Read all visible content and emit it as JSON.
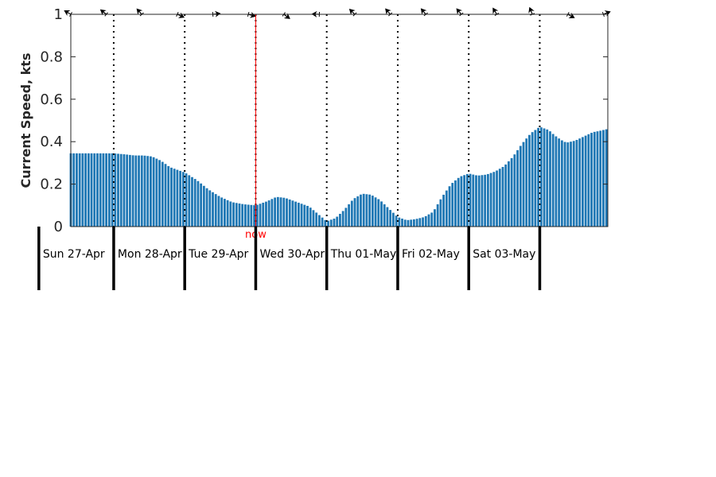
{
  "chart_data": {
    "type": "bar",
    "ylabel": "Current Speed, kts",
    "ylim": [
      0,
      1
    ],
    "yticks": [
      "0",
      "0.2",
      "0.4",
      "0.6",
      "0.8",
      "1"
    ],
    "grid": false,
    "bar_color": "#1f77b4",
    "now_color": "#ff0000",
    "now_label": "now",
    "now_time": "2025-04-29T00:00",
    "x_start": "2025-04-26T09:30",
    "x_end": "2025-05-03T23:00",
    "interval_hours": 1,
    "day_labels": [
      "Sun 27-Apr",
      "Mon 28-Apr",
      "Tue 29-Apr",
      "Wed 30-Apr",
      "Thu 01-May",
      "Fri 02-May",
      "Sat 03-May"
    ],
    "day_boundaries": [
      "2025-04-27T00:00",
      "2025-04-28T00:00",
      "2025-04-29T00:00",
      "2025-04-30T00:00",
      "2025-05-01T00:00",
      "2025-05-02T00:00",
      "2025-05-03T00:00"
    ],
    "speed_points": [
      [
        "2025-04-27T00:00",
        0.345
      ],
      [
        "2025-04-27T04:00",
        0.34
      ],
      [
        "2025-04-27T07:00",
        0.335
      ],
      [
        "2025-04-27T10:00",
        0.335
      ],
      [
        "2025-04-27T13:00",
        0.33
      ],
      [
        "2025-04-27T16:00",
        0.31
      ],
      [
        "2025-04-27T19:00",
        0.28
      ],
      [
        "2025-04-28T00:00",
        0.255
      ],
      [
        "2025-04-28T04:00",
        0.22
      ],
      [
        "2025-04-28T08:00",
        0.175
      ],
      [
        "2025-04-28T12:00",
        0.14
      ],
      [
        "2025-04-28T16:00",
        0.115
      ],
      [
        "2025-04-28T20:00",
        0.105
      ],
      [
        "2025-04-29T00:00",
        0.1
      ],
      [
        "2025-04-29T04:00",
        0.12
      ],
      [
        "2025-04-29T07:00",
        0.14
      ],
      [
        "2025-04-29T10:00",
        0.135
      ],
      [
        "2025-04-29T12:00",
        0.125
      ],
      [
        "2025-04-29T15:00",
        0.11
      ],
      [
        "2025-04-29T18:00",
        0.095
      ],
      [
        "2025-04-29T21:00",
        0.06
      ],
      [
        "2025-04-30T00:00",
        0.025
      ],
      [
        "2025-04-30T03:00",
        0.04
      ],
      [
        "2025-04-30T06:00",
        0.08
      ],
      [
        "2025-04-30T09:00",
        0.13
      ],
      [
        "2025-04-30T12:00",
        0.155
      ],
      [
        "2025-04-30T15:00",
        0.15
      ],
      [
        "2025-04-30T18:00",
        0.125
      ],
      [
        "2025-04-30T21:00",
        0.085
      ],
      [
        "2025-05-01T00:00",
        0.045
      ],
      [
        "2025-05-01T03:00",
        0.03
      ],
      [
        "2025-05-01T06:00",
        0.035
      ],
      [
        "2025-05-01T09:00",
        0.045
      ],
      [
        "2025-05-01T12:00",
        0.07
      ],
      [
        "2025-05-01T15:00",
        0.14
      ],
      [
        "2025-05-01T18:00",
        0.2
      ],
      [
        "2025-05-01T21:00",
        0.235
      ],
      [
        "2025-05-02T00:00",
        0.25
      ],
      [
        "2025-05-02T03:00",
        0.24
      ],
      [
        "2025-05-02T06:00",
        0.245
      ],
      [
        "2025-05-02T09:00",
        0.26
      ],
      [
        "2025-05-02T12:00",
        0.285
      ],
      [
        "2025-05-02T15:00",
        0.33
      ],
      [
        "2025-05-02T18:00",
        0.39
      ],
      [
        "2025-05-02T21:00",
        0.44
      ],
      [
        "2025-05-03T00:00",
        0.47
      ],
      [
        "2025-05-03T03:00",
        0.455
      ],
      [
        "2025-05-03T05:00",
        0.43
      ],
      [
        "2025-05-03T07:00",
        0.41
      ],
      [
        "2025-05-03T09:00",
        0.395
      ],
      [
        "2025-05-03T12:00",
        0.405
      ],
      [
        "2025-05-03T15:00",
        0.425
      ],
      [
        "2025-05-03T18:00",
        0.445
      ],
      [
        "2025-05-03T20:00",
        0.45
      ],
      [
        "2025-05-03T23:00",
        0.46
      ]
    ],
    "direction_deg_points": [
      [
        "2025-04-26T09:30",
        300
      ],
      [
        "2025-04-27T00:00",
        310
      ],
      [
        "2025-04-27T12:00",
        320
      ],
      [
        "2025-04-28T00:00",
        60
      ],
      [
        "2025-04-28T12:00",
        90
      ],
      [
        "2025-04-29T00:00",
        110
      ],
      [
        "2025-04-29T12:00",
        130
      ],
      [
        "2025-04-30T00:00",
        310
      ],
      [
        "2025-05-01T00:00",
        320
      ],
      [
        "2025-05-02T00:00",
        320
      ],
      [
        "2025-05-02T12:00",
        330
      ],
      [
        "2025-05-03T00:00",
        340
      ],
      [
        "2025-05-03T12:00",
        60
      ],
      [
        "2025-05-03T23:00",
        70
      ]
    ]
  }
}
